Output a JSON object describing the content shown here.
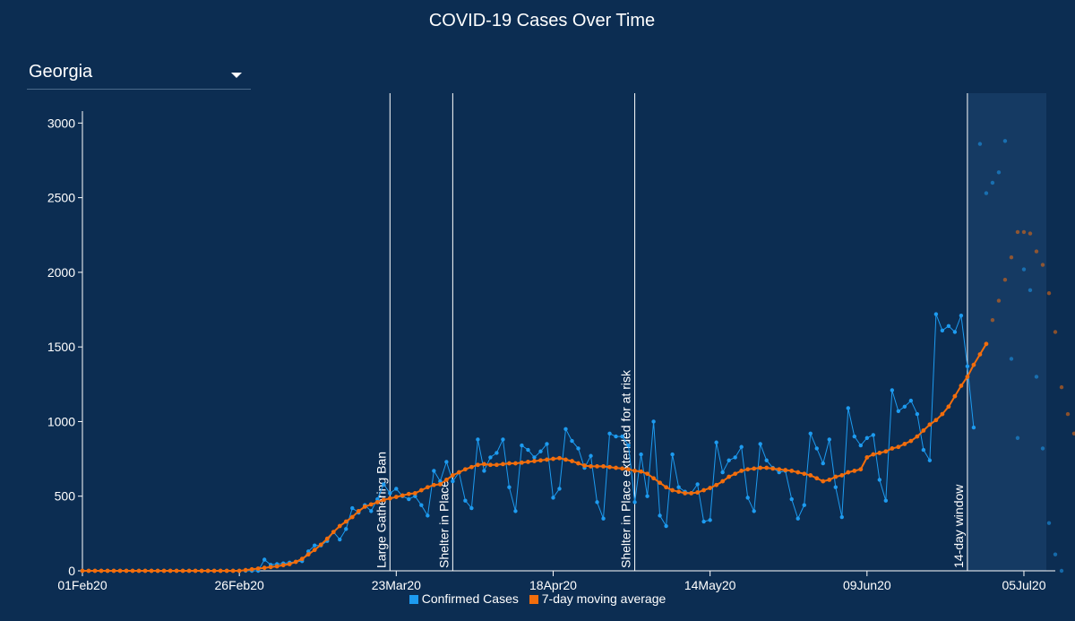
{
  "title": "COVID-19 Cases Over Time",
  "state_selector": {
    "value": "Georgia"
  },
  "colors": {
    "background": "#0c2d52",
    "confirmed": "#1d9bf0",
    "moving_avg": "#f26d0c",
    "window_shade": "#153a63"
  },
  "legend": {
    "confirmed_label": "Confirmed Cases",
    "avg_label": "7-day moving average"
  },
  "chart_data": {
    "type": "line",
    "title": "COVID-19 Cases Over Time",
    "x_ticks": [
      "01Feb20",
      "26Feb20",
      "23Mar20",
      "18Apr20",
      "14May20",
      "09Jun20",
      "05Jul20"
    ],
    "y_ticks": [
      0,
      500,
      1000,
      1500,
      2000,
      2500,
      3000
    ],
    "ylim": [
      0,
      3200
    ],
    "xlim": [
      "2020-02-01",
      "2020-07-05"
    ],
    "grid": false,
    "legend_position": "bottom",
    "events": [
      {
        "date": "2020-03-21",
        "label": "Large Gathering Ban"
      },
      {
        "date": "2020-03-31",
        "label": "Shelter in Place"
      },
      {
        "date": "2020-04-29",
        "label": "Shelter in Place extended for at risk"
      },
      {
        "date": "2020-06-21",
        "label": "14-day window"
      }
    ],
    "window": {
      "start": "2020-06-21",
      "end": "2020-07-05",
      "label": "14-day window"
    },
    "series": [
      {
        "name": "Confirmed Cases",
        "start_date": "2020-02-01",
        "values": [
          0,
          0,
          0,
          0,
          0,
          0,
          0,
          0,
          0,
          0,
          0,
          0,
          0,
          0,
          0,
          0,
          0,
          0,
          0,
          0,
          0,
          0,
          0,
          0,
          0,
          0,
          0,
          0,
          0,
          75,
          40,
          45,
          50,
          55,
          60,
          65,
          130,
          170,
          170,
          200,
          260,
          210,
          280,
          420,
          390,
          440,
          400,
          480,
          580,
          520,
          550,
          500,
          480,
          500,
          440,
          370,
          670,
          600,
          730,
          600,
          660,
          470,
          420,
          880,
          670,
          760,
          790,
          880,
          560,
          400,
          840,
          810,
          760,
          800,
          850,
          490,
          550,
          950,
          870,
          820,
          690,
          770,
          460,
          350,
          920,
          900,
          900,
          840,
          460,
          780,
          500,
          1000,
          370,
          300,
          780,
          560,
          530,
          520,
          580,
          330,
          340,
          860,
          660,
          740,
          760,
          830,
          490,
          400,
          850,
          740,
          690,
          660,
          670,
          480,
          350,
          440,
          920,
          820,
          720,
          880,
          560,
          360,
          1090,
          900,
          840,
          890,
          910,
          610,
          470,
          1210,
          1070,
          1100,
          1140,
          1050,
          810,
          740,
          1720,
          1610,
          1640,
          1600,
          1710,
          1370,
          960
        ],
        "window_values": [
          2860,
          2530,
          2600,
          2670,
          2880,
          1420,
          890,
          2020,
          1880,
          1300,
          820,
          320,
          110,
          0
        ]
      },
      {
        "name": "7-day moving average",
        "start_date": "2020-02-01",
        "values": [
          0,
          0,
          0,
          0,
          0,
          0,
          0,
          0,
          0,
          0,
          0,
          0,
          0,
          0,
          0,
          0,
          0,
          0,
          0,
          0,
          0,
          0,
          0,
          0,
          0,
          0,
          5,
          10,
          15,
          20,
          25,
          30,
          38,
          45,
          60,
          80,
          110,
          140,
          175,
          215,
          260,
          300,
          330,
          360,
          400,
          430,
          445,
          460,
          475,
          485,
          495,
          505,
          515,
          520,
          540,
          560,
          575,
          580,
          610,
          640,
          660,
          680,
          695,
          710,
          715,
          710,
          710,
          715,
          720,
          720,
          725,
          730,
          735,
          740,
          745,
          750,
          755,
          745,
          735,
          720,
          705,
          700,
          700,
          700,
          695,
          690,
          685,
          680,
          670,
          665,
          650,
          620,
          590,
          560,
          540,
          530,
          520,
          520,
          525,
          540,
          555,
          575,
          600,
          630,
          650,
          670,
          680,
          685,
          690,
          690,
          685,
          680,
          675,
          670,
          660,
          650,
          640,
          620,
          600,
          610,
          630,
          640,
          660,
          670,
          680,
          760,
          780,
          790,
          800,
          820,
          830,
          850,
          870,
          900,
          940,
          980,
          1010,
          1050,
          1100,
          1170,
          1240,
          1300,
          1380,
          1450,
          1520
        ],
        "window_values": [
          1680,
          1810,
          1950,
          2100,
          2270,
          2270,
          2260,
          2140,
          2050,
          1860,
          1600,
          1230,
          1050,
          920
        ]
      }
    ]
  }
}
